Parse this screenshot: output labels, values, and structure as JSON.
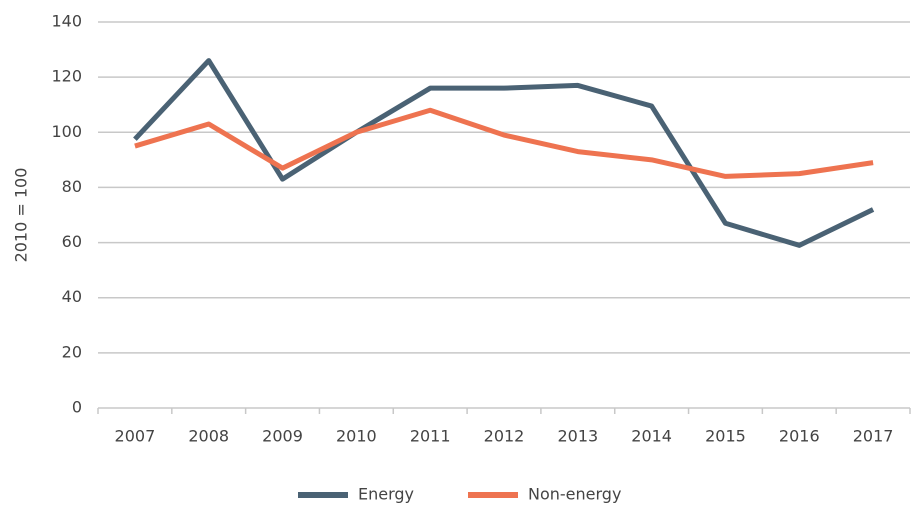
{
  "chart_data": {
    "type": "line",
    "y_label": "2010 = 100",
    "categories": [
      "2007",
      "2008",
      "2009",
      "2010",
      "2011",
      "2012",
      "2013",
      "2014",
      "2015",
      "2016",
      "2017"
    ],
    "series": [
      {
        "name": "Energy",
        "color": "#4a6274",
        "values": [
          97.5,
          126,
          83,
          100,
          116,
          116,
          117,
          109.5,
          67,
          59,
          72
        ]
      },
      {
        "name": "Non-energy",
        "color": "#ee7350",
        "values": [
          95,
          103,
          87,
          100,
          108,
          99,
          93,
          90,
          84,
          85,
          89
        ]
      }
    ],
    "ylim": [
      0,
      140
    ],
    "yticks": [
      0,
      20,
      40,
      60,
      80,
      100,
      120,
      140
    ],
    "grid": true,
    "legend": "bottom"
  }
}
